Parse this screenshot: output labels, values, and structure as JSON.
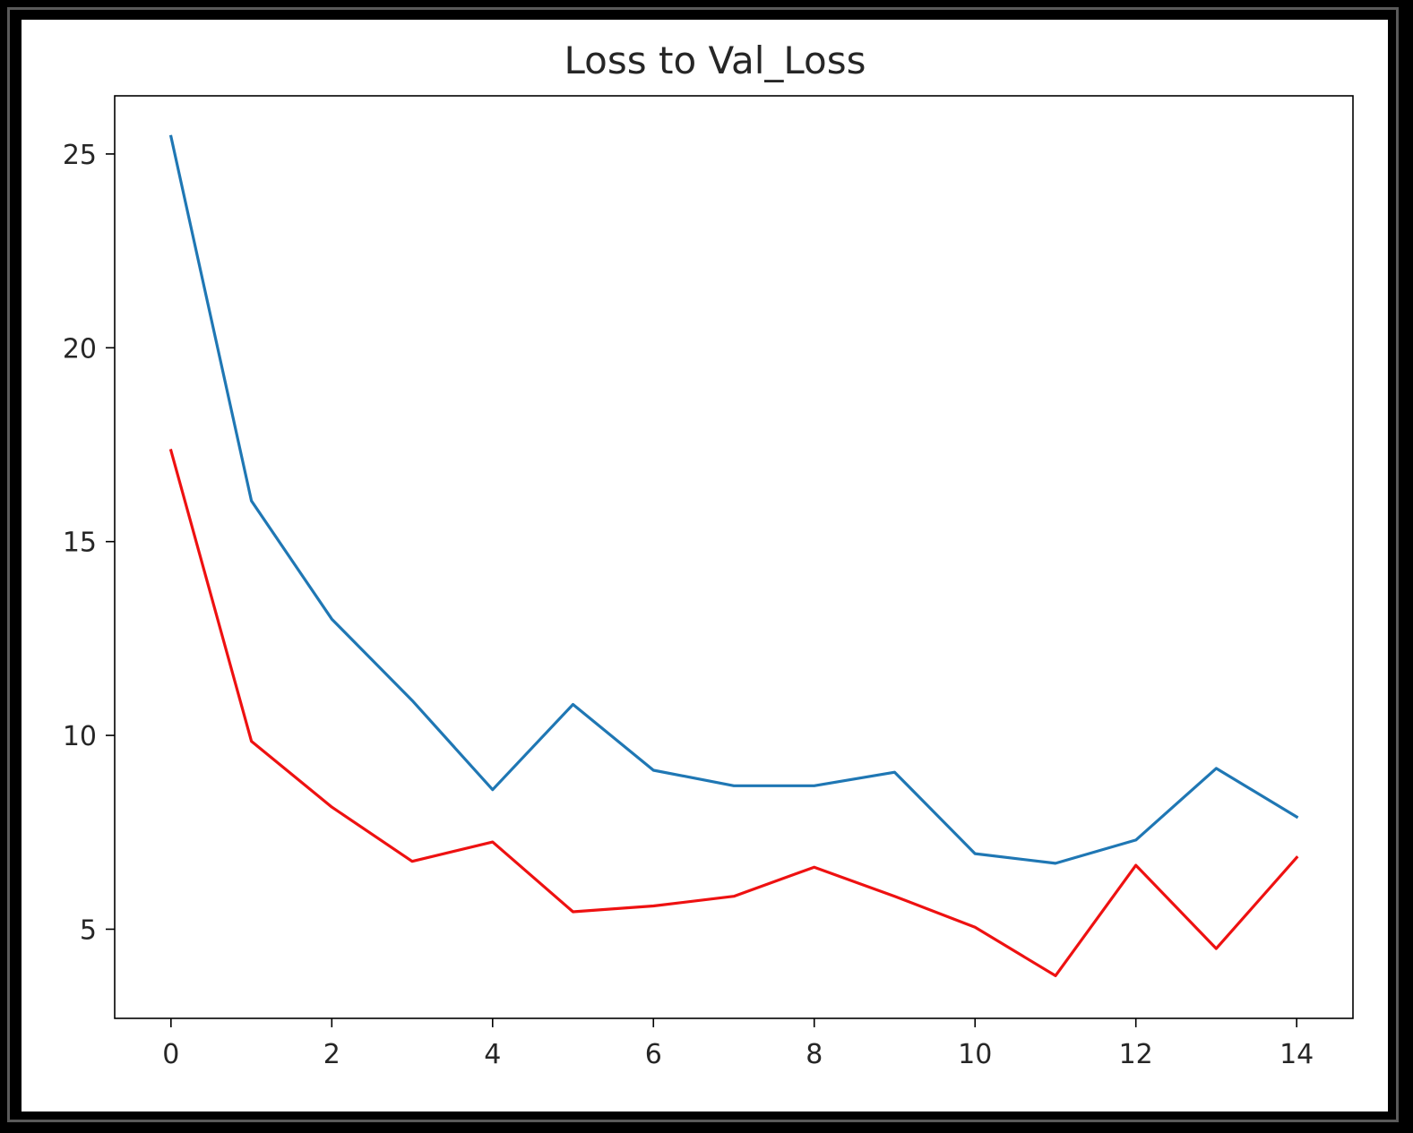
{
  "colors": {
    "background": "#ffffff",
    "frame": "#000000",
    "axes": "#000000",
    "text": "#262626",
    "loss": "#1f77b4",
    "val_loss": "#ee1111"
  },
  "chart_data": {
    "type": "line",
    "title": "Loss to Val_Loss",
    "xlabel": "",
    "ylabel": "",
    "xlim": [
      -0.7,
      14.7
    ],
    "ylim": [
      2.7,
      26.5
    ],
    "xticks": [
      0,
      2,
      4,
      6,
      8,
      10,
      12,
      14
    ],
    "yticks": [
      5,
      10,
      15,
      20,
      25
    ],
    "grid": false,
    "legend": "none",
    "x": [
      0,
      1,
      2,
      3,
      4,
      5,
      6,
      7,
      8,
      9,
      10,
      11,
      12,
      13,
      14
    ],
    "series": [
      {
        "color": "#1f77b4",
        "values": [
          25.45,
          16.05,
          13.0,
          10.9,
          8.6,
          10.8,
          9.1,
          8.7,
          8.7,
          9.05,
          6.95,
          6.7,
          7.3,
          9.15,
          7.9
        ]
      },
      {
        "color": "#ee1111",
        "values": [
          17.35,
          9.85,
          8.15,
          6.75,
          7.25,
          5.45,
          5.6,
          5.85,
          6.6,
          5.85,
          5.05,
          3.8,
          6.65,
          4.5,
          6.85
        ]
      }
    ]
  }
}
